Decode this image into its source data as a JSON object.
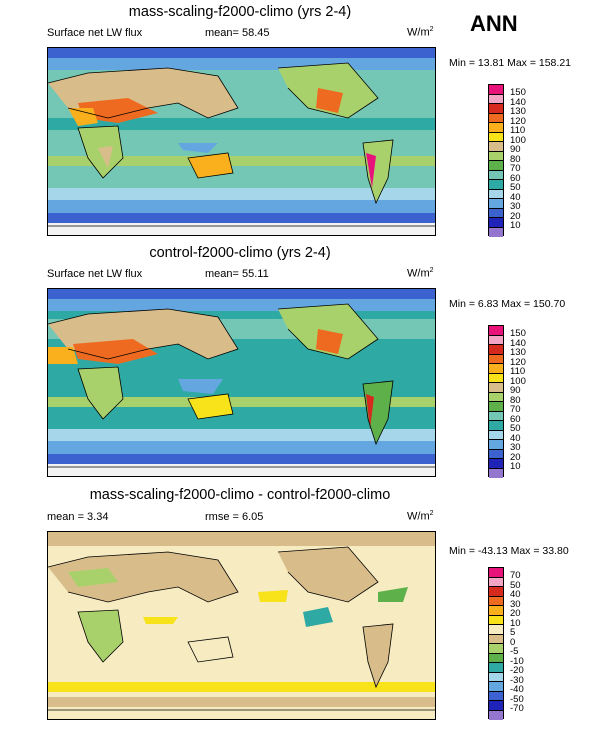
{
  "season": "ANN",
  "panels": [
    {
      "title": "mass-scaling-f2000-climo (yrs 2-4)",
      "left_label": "Surface net LW flux",
      "center_label": "mean=  58.45",
      "units": "W/m",
      "units_sup": "2",
      "minmax": "Min =  13.81 Max = 158.21",
      "levels": [
        "150",
        "140",
        "130",
        "120",
        "110",
        "100",
        "90",
        "80",
        "70",
        "60",
        "50",
        "40",
        "30",
        "20",
        "10"
      ],
      "colors": [
        "#e8127b",
        "#f3a4c4",
        "#d62a1f",
        "#ef6a21",
        "#f9b01c",
        "#f8e21a",
        "#d8bd8a",
        "#a9d16b",
        "#5db04a",
        "#74c7b5",
        "#2fa9a3",
        "#a6d6ea",
        "#63a6e0",
        "#3b62cf",
        "#1f23b8",
        "#9576cf"
      ]
    },
    {
      "title": "control-f2000-climo (yrs 2-4)",
      "left_label": "Surface net LW flux",
      "center_label": "mean=  55.11",
      "units": "W/m",
      "units_sup": "2",
      "minmax": "Min =   6.83 Max = 150.70",
      "levels": [
        "150",
        "140",
        "130",
        "120",
        "110",
        "100",
        "90",
        "80",
        "70",
        "60",
        "50",
        "40",
        "30",
        "20",
        "10"
      ],
      "colors": [
        "#e8127b",
        "#f3a4c4",
        "#d62a1f",
        "#ef6a21",
        "#f9b01c",
        "#f8e21a",
        "#d8bd8a",
        "#a9d16b",
        "#5db04a",
        "#74c7b5",
        "#2fa9a3",
        "#a6d6ea",
        "#63a6e0",
        "#3b62cf",
        "#1f23b8",
        "#9576cf"
      ]
    },
    {
      "title": "mass-scaling-f2000-climo - control-f2000-climo",
      "left_label": "mean =   3.34",
      "center_label": "rmse =   6.05",
      "units": "W/m",
      "units_sup": "2",
      "minmax": "Min = -43.13 Max =  33.80",
      "levels": [
        "70",
        "50",
        "40",
        "30",
        "20",
        "10",
        "5",
        "0",
        "-5",
        "-10",
        "-20",
        "-30",
        "-40",
        "-50",
        "-70"
      ],
      "colors": [
        "#e8127b",
        "#f3a4c4",
        "#d62a1f",
        "#ef6a21",
        "#f9b01c",
        "#f8e21a",
        "#f6ebc1",
        "#d8bd8a",
        "#a9d16b",
        "#5db04a",
        "#2fa9a3",
        "#a6d6ea",
        "#63a6e0",
        "#3b62cf",
        "#1f23b8",
        "#9576cf"
      ]
    }
  ],
  "chart_data": [
    {
      "type": "heatmap",
      "title": "mass-scaling-f2000-climo (yrs 2-4)",
      "variable": "Surface net LW flux",
      "units": "W/m2",
      "mean": 58.45,
      "min": 13.81,
      "max": 158.21,
      "contour_levels": [
        10,
        20,
        30,
        40,
        50,
        60,
        70,
        80,
        90,
        100,
        110,
        120,
        130,
        140,
        150
      ]
    },
    {
      "type": "heatmap",
      "title": "control-f2000-climo (yrs 2-4)",
      "variable": "Surface net LW flux",
      "units": "W/m2",
      "mean": 55.11,
      "min": 6.83,
      "max": 150.7,
      "contour_levels": [
        10,
        20,
        30,
        40,
        50,
        60,
        70,
        80,
        90,
        100,
        110,
        120,
        130,
        140,
        150
      ]
    },
    {
      "type": "heatmap",
      "title": "mass-scaling-f2000-climo - control-f2000-climo",
      "units": "W/m2",
      "mean": 3.34,
      "rmse": 6.05,
      "min": -43.13,
      "max": 33.8,
      "contour_levels": [
        -70,
        -50,
        -40,
        -30,
        -20,
        -10,
        -5,
        0,
        5,
        10,
        20,
        30,
        40,
        50,
        70
      ]
    }
  ]
}
